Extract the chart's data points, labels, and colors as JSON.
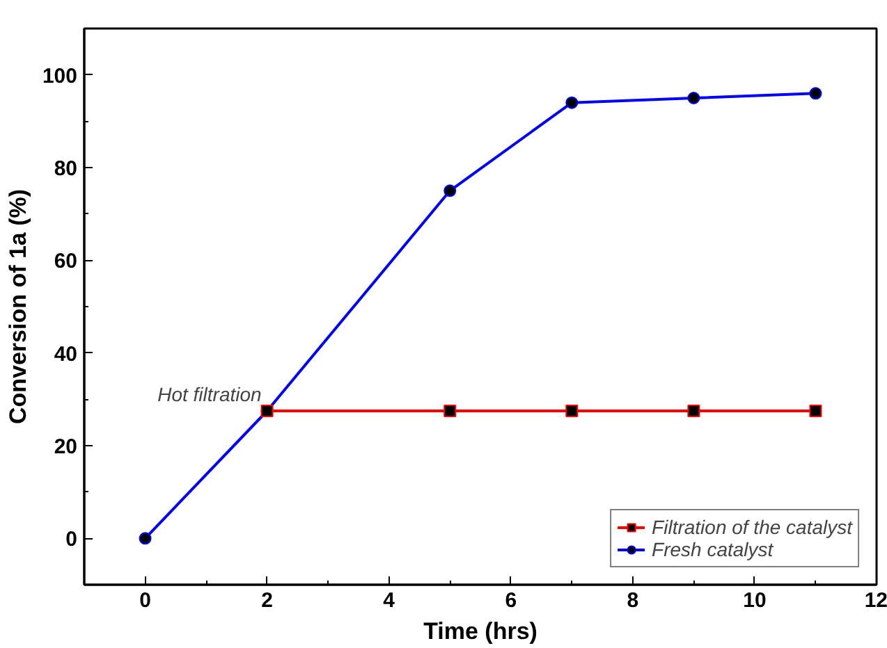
{
  "chart_data": {
    "type": "line",
    "xlabel": "Time (hrs)",
    "ylabel": "Conversion of 1a (%)",
    "xlim": [
      -1,
      12
    ],
    "xticks": [
      0,
      2,
      4,
      6,
      8,
      10,
      12
    ],
    "ylim": [
      -10,
      110
    ],
    "yticks": [
      0,
      20,
      40,
      60,
      80,
      100
    ],
    "series": [
      {
        "name": "Filtration of the catalyst",
        "color": "#ff0000",
        "marker": "square",
        "x": [
          2,
          5,
          7,
          9,
          11
        ],
        "values": [
          27.5,
          27.5,
          27.5,
          27.5,
          27.5
        ]
      },
      {
        "name": "Fresh catalyst",
        "color": "#0000ff",
        "marker": "circle",
        "x": [
          0,
          2,
          5,
          7,
          9,
          11
        ],
        "values": [
          0,
          27.5,
          75,
          94,
          95,
          96
        ]
      }
    ],
    "annotations": [
      {
        "text": "Hot filtration",
        "x": 2,
        "y": 27.5
      }
    ],
    "legend": "bottom right",
    "grid": false
  }
}
